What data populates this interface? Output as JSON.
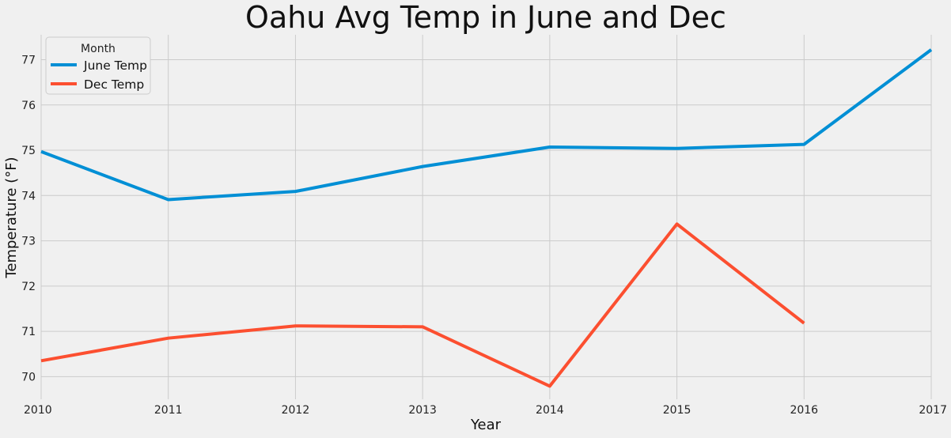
{
  "chart_data": {
    "type": "line",
    "title": "Oahu Avg Temp in June and Dec",
    "xlabel": "Year",
    "ylabel": "Temperature (°F)",
    "x": [
      2010,
      2011,
      2012,
      2013,
      2014,
      2015,
      2016,
      2017
    ],
    "xlim": [
      2010,
      2017
    ],
    "ylim": [
      69.5,
      77.55
    ],
    "xticks": [
      "2010",
      "2011",
      "2012",
      "2013",
      "2014",
      "2015",
      "2016",
      "2017"
    ],
    "yticks": [
      "70",
      "71",
      "72",
      "73",
      "74",
      "75",
      "76",
      "77"
    ],
    "grid": true,
    "legend": {
      "title": "Month",
      "position": "top-left"
    },
    "series": [
      {
        "name": "June Temp",
        "color": "#008fd5",
        "values": [
          74.97,
          73.91,
          74.09,
          74.64,
          75.07,
          75.04,
          75.13,
          77.22
        ]
      },
      {
        "name": "Dec Temp",
        "color": "#fc4f30",
        "values": [
          70.35,
          70.85,
          71.12,
          71.1,
          69.79,
          73.37,
          71.18,
          null
        ]
      }
    ]
  }
}
